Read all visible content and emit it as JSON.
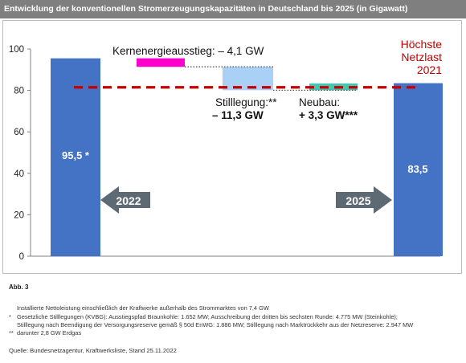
{
  "header": {
    "title": "Entwicklung der konventionellen Stromerzeugungskapazitäten in Deutschland bis 2025 (in Gigawatt)"
  },
  "colors": {
    "header_bg": "#7f7f7f",
    "bar": "#4472c4",
    "nuclear": "#ff00cc",
    "closures": "#a9d0f5",
    "new_build": "#44c7b0",
    "peak_load": "#c00000",
    "arrow": "#5e6a73"
  },
  "chart_data": {
    "type": "bar",
    "subtype": "waterfall",
    "ylim": [
      0,
      100
    ],
    "yticks": [
      "0",
      "20",
      "40",
      "60",
      "80",
      "100"
    ],
    "bars": [
      {
        "name": "start",
        "value": 95.5,
        "label": "95,5 *"
      },
      {
        "name": "end",
        "value": 83.5,
        "label": "83,5"
      }
    ],
    "steps": [
      {
        "name": "nuclear",
        "from": 95.5,
        "to": 91.4
      },
      {
        "name": "closures",
        "from": 91.4,
        "to": 80.1
      },
      {
        "name": "new_build",
        "from": 80.1,
        "to": 83.4
      }
    ],
    "peak_load": 81.5,
    "annotations": {
      "nuclear": "Kernenergieausstieg: – 4,1 GW",
      "closures_1": "Stilllegung:**",
      "closures_2": "– 11,3 GW",
      "new_build_1": "Neubau:",
      "new_build_2": "+ 3,3 GW***",
      "peak_1": "Höchste",
      "peak_2": "Netzlast",
      "peak_3": "2021"
    },
    "arrows": [
      {
        "label": "2022",
        "direction": "left"
      },
      {
        "label": "2025",
        "direction": "right"
      }
    ],
    "grid": false,
    "legend": "none"
  },
  "figure_label": "Abb. 3",
  "footnotes": [
    {
      "mark": "",
      "text": "Installierte Nettoleistung einschließlich der Kraftwerke außerhalb des Strommarktes von 7,4 GW"
    },
    {
      "mark": "*",
      "text": "Gesetzliche Stilllegungen (KVBG): Ausstiegspfad Braunkohle: 1.652 MW; Ausschreibung der dritten bis sechsten Runde: 4.775 MW (Steinkohle);"
    },
    {
      "mark": "",
      "text": "Stilllegung nach Beendigung der Versorgungsreserve gemäß § 50d EnWG: 1.886 MW; Stilllegung nach Marktrückkehr aus der Netzreserve: 2.947 MW"
    },
    {
      "mark": "**",
      "text": "darunter 2,8 GW Erdgas"
    }
  ],
  "source": "Quelle: Bundesnetzagentur, Kraftwerksliste, Stand 25.11.2022"
}
